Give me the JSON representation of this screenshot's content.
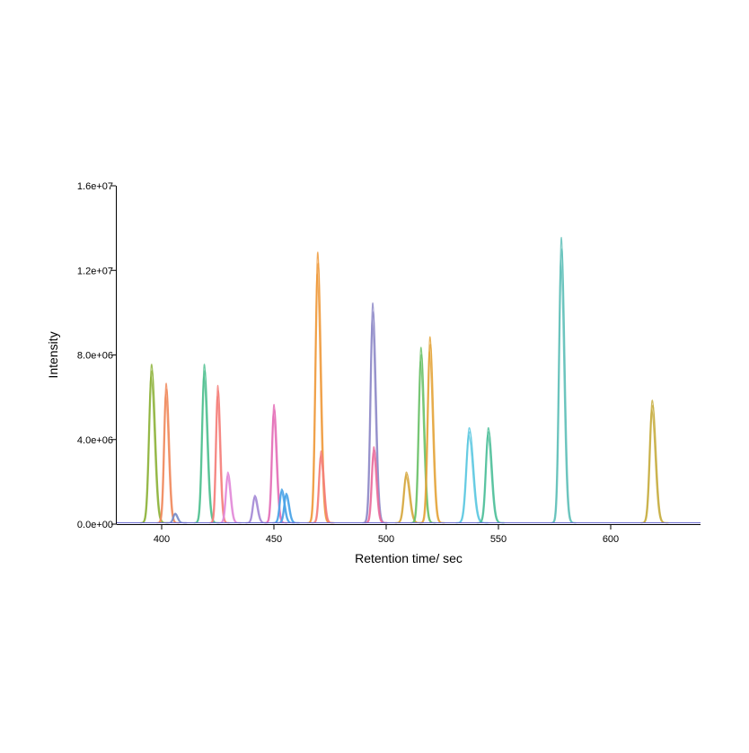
{
  "chart_data": {
    "type": "line",
    "title": "",
    "xlabel": "Retention time/ sec",
    "ylabel": "Intensity",
    "xlim": [
      380,
      640
    ],
    "ylim": [
      0,
      16000000
    ],
    "x_ticks": [
      400,
      450,
      500,
      550,
      600
    ],
    "x_tick_labels": [
      "400",
      "450",
      "500",
      "550",
      "600"
    ],
    "y_ticks": [
      0,
      4000000,
      8000000,
      12000000,
      16000000
    ],
    "y_tick_labels": [
      "0.0e+00",
      "4.0e+06",
      "8.0e+06",
      "1.2e+07",
      "1.6e+07"
    ],
    "grid": false,
    "legend": "none",
    "baseline_color": "#6a6ad0",
    "series": [
      {
        "color": "#8db33a",
        "rt": 395.5,
        "height": 7500000,
        "width": 1.1
      },
      {
        "color": "#f08a5d",
        "rt": 402.0,
        "height": 6600000,
        "width": 0.9
      },
      {
        "color": "#7a8ec9",
        "rt": 406.0,
        "height": 450000,
        "width": 0.8
      },
      {
        "color": "#4fbf8f",
        "rt": 419.0,
        "height": 7500000,
        "width": 1.0
      },
      {
        "color": "#f47f7a",
        "rt": 425.0,
        "height": 6500000,
        "width": 0.8
      },
      {
        "color": "#e28ad8",
        "rt": 429.5,
        "height": 2400000,
        "width": 0.9
      },
      {
        "color": "#a58ad6",
        "rt": 441.5,
        "height": 1300000,
        "width": 0.9
      },
      {
        "color": "#e46fb7",
        "rt": 450.0,
        "height": 5600000,
        "width": 0.9
      },
      {
        "color": "#4aa3e8",
        "rt": 453.5,
        "height": 1600000,
        "width": 0.9
      },
      {
        "color": "#4aa3e8",
        "rt": 455.5,
        "height": 1400000,
        "width": 0.9
      },
      {
        "color": "#ef9a3c",
        "rt": 469.5,
        "height": 12800000,
        "width": 1.0
      },
      {
        "color": "#f47f7a",
        "rt": 471.0,
        "height": 3400000,
        "width": 0.9
      },
      {
        "color": "#8e8ac8",
        "rt": 494.0,
        "height": 10400000,
        "width": 1.0
      },
      {
        "color": "#ea6f9e",
        "rt": 494.5,
        "height": 3600000,
        "width": 0.9
      },
      {
        "color": "#d6a83f",
        "rt": 509.0,
        "height": 2400000,
        "width": 1.1
      },
      {
        "color": "#6cc26a",
        "rt": 515.5,
        "height": 8300000,
        "width": 1.0
      },
      {
        "color": "#e4a53b",
        "rt": 519.5,
        "height": 8800000,
        "width": 1.0
      },
      {
        "color": "#5cc8e0",
        "rt": 537.0,
        "height": 4500000,
        "width": 1.3
      },
      {
        "color": "#4fbf9a",
        "rt": 545.5,
        "height": 4500000,
        "width": 1.1
      },
      {
        "color": "#5fbfb8",
        "rt": 578.0,
        "height": 13500000,
        "width": 1.0
      },
      {
        "color": "#c7ad3f",
        "rt": 618.5,
        "height": 5800000,
        "width": 1.1
      }
    ]
  }
}
